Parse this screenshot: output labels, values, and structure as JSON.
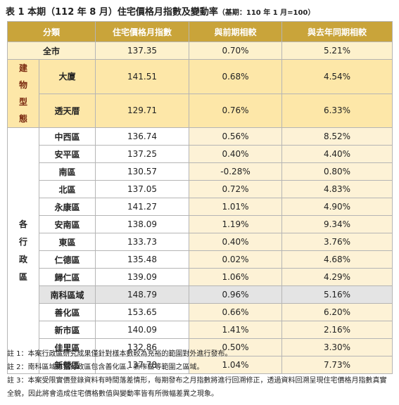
{
  "title": "表 1 本期（112 年 8 月）住宅價格月指數及變動率",
  "title_note": "（基期：110 年 1 月=100）",
  "table": {
    "header": [
      "分類",
      "住宅價格月指數",
      "與前期相較",
      "與去年同期相較"
    ],
    "total": [
      "全市",
      "137.35",
      "0.70%",
      "5.21%"
    ],
    "groups": [
      {
        "label": "建物型態",
        "rows": [
          [
            "大廈",
            "141.51",
            "0.68%",
            "4.54%"
          ],
          [
            "透天厝",
            "129.71",
            "0.76%",
            "6.33%"
          ]
        ]
      },
      {
        "label": "各行政區",
        "rows": [
          [
            "中西區",
            "136.74",
            "0.56%",
            "8.52%"
          ],
          [
            "安平區",
            "137.25",
            "0.40%",
            "4.40%"
          ],
          [
            "南區",
            "130.57",
            "-0.28%",
            "0.80%"
          ],
          [
            "北區",
            "137.05",
            "0.72%",
            "4.83%"
          ],
          [
            "永康區",
            "141.27",
            "1.01%",
            "4.90%"
          ],
          [
            "安南區",
            "138.09",
            "1.19%",
            "9.34%"
          ],
          [
            "東區",
            "133.73",
            "0.40%",
            "3.76%"
          ],
          [
            "仁德區",
            "135.48",
            "0.02%",
            "4.68%"
          ],
          [
            "歸仁區",
            "139.09",
            "1.06%",
            "4.29%"
          ],
          [
            "南科區域",
            "148.79",
            "0.96%",
            "5.16%"
          ],
          [
            "善化區",
            "153.65",
            "0.66%",
            "6.20%"
          ],
          [
            "新市區",
            "140.09",
            "1.41%",
            "2.16%"
          ],
          [
            "佳里區",
            "132.86",
            "0.50%",
            "3.30%"
          ],
          [
            "新營區",
            "137.78",
            "1.04%",
            "7.73%"
          ]
        ]
      }
    ]
  },
  "notes": [
    "註 1：本案行政區研究成果僅針對樣本數較為充裕的範圍對外進行發布。",
    "註 2：南科區域係指行政區包含善化區、新市區等範圍之區域。",
    "註 3：本案受限實價登錄資料有時間落差情形，每期發布之月指數將進行回溯修正，透過資料回溯呈現住宅價格月指數真實全貌，因此將會造成住宅價格數值與變動率皆有所微幅差異之現象。"
  ]
}
